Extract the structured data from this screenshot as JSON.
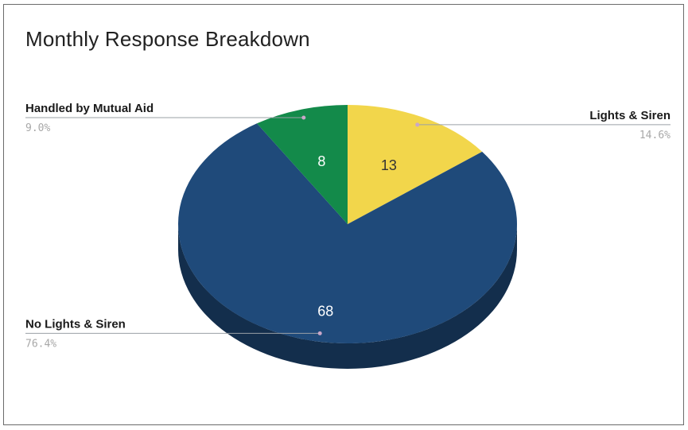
{
  "chart_data": {
    "type": "pie",
    "title": "Monthly Response Breakdown",
    "three_d": true,
    "slices": [
      {
        "label": "Lights & Siren",
        "value": 13,
        "percent": "14.6%",
        "color": "#f2d64b"
      },
      {
        "label": "No Lights & Siren",
        "value": 68,
        "percent": "76.4%",
        "color": "#1f4a7a"
      },
      {
        "label": "Handled by Mutual Aid",
        "value": 8,
        "percent": "9.0%",
        "color": "#138a4a"
      }
    ],
    "legend": "none"
  }
}
